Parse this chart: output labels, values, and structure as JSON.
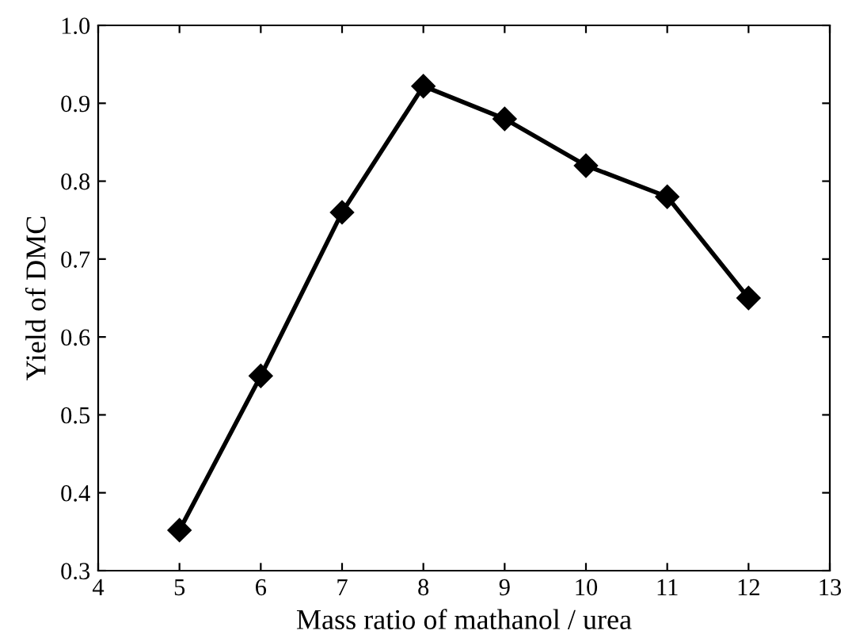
{
  "chart_data": {
    "type": "line",
    "xlabel": "Mass ratio of mathanol / urea",
    "ylabel": "Yield of DMC",
    "x": [
      5,
      6,
      7,
      8,
      9,
      10,
      11,
      12
    ],
    "series": [
      {
        "color": "#000000",
        "values": [
          0.352,
          0.55,
          0.76,
          0.922,
          0.88,
          0.82,
          0.78,
          0.65
        ]
      }
    ],
    "xlim": [
      4,
      13
    ],
    "xticks": [
      4,
      5,
      6,
      7,
      8,
      9,
      10,
      11,
      12,
      13
    ],
    "ylim": [
      0.3,
      1.0
    ],
    "yticks": [
      0.3,
      0.4,
      0.5,
      0.6,
      0.7,
      0.8,
      0.9,
      {
        "value": 1.0,
        "label": "1.0"
      }
    ],
    "marker": "diamond",
    "line_style": "solid",
    "grid": false,
    "legend": false
  }
}
